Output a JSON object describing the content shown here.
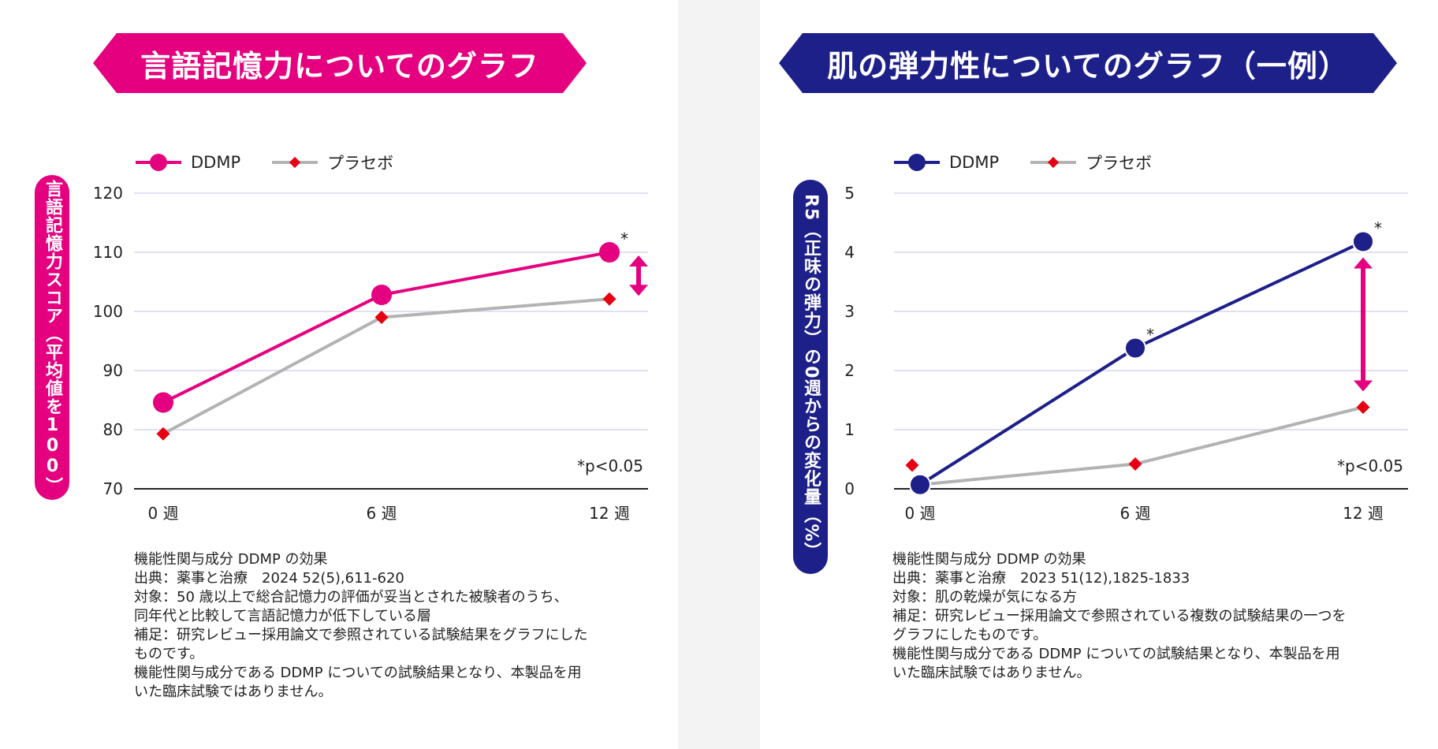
{
  "colors": {
    "magenta": "#e4007f",
    "navy": "#1d2088",
    "gray": "#b3b3b3",
    "red": "#e60012"
  },
  "chart_data": [
    {
      "type": "line",
      "title": "言語記憶力についてのグラフ",
      "ylabel": "言語記憶力スコア（平均値を100）",
      "xlabel": "",
      "categories": [
        "0 週",
        "6 週",
        "12 週"
      ],
      "x": [
        0,
        6,
        12
      ],
      "ylim": [
        70,
        120
      ],
      "yticks": [
        70,
        80,
        90,
        100,
        110,
        120
      ],
      "grid": true,
      "legend": "top-left",
      "series": [
        {
          "name": "DDMP",
          "values": [
            84.6,
            102.8,
            110.0
          ],
          "significance": [
            "",
            "",
            "*"
          ]
        },
        {
          "name": "プラセボ",
          "values": [
            79.3,
            99.0,
            102.1
          ]
        }
      ],
      "annotation": "*p<0.05",
      "notes": [
        "機能性関与成分 DDMP の効果",
        "出典：薬事と治療　2024 52(5),611-620",
        "対象：50 歳以上で総合記憶力の評価が妥当とされた被験者のうち、",
        "同年代と比較して言語記憶力が低下している層",
        "補足：研究レビュー採用論文で参照されている試験結果をグラフにした",
        "ものです。",
        "機能性関与成分である DDMP についての試験結果となり、本製品を用",
        "いた臨床試験ではありません。"
      ]
    },
    {
      "type": "line",
      "title": "肌の弾力性についてのグラフ（一例）",
      "ylabel": "R5（正味の弾力）の0週からの変化量（%）",
      "xlabel": "",
      "categories": [
        "0 週",
        "6 週",
        "12 週"
      ],
      "x": [
        0,
        6,
        12
      ],
      "ylim": [
        0,
        5
      ],
      "yticks": [
        0,
        1,
        2,
        3,
        4,
        5
      ],
      "grid": true,
      "legend": "top-left",
      "series": [
        {
          "name": "DDMP",
          "values": [
            0.07,
            2.38,
            4.18
          ],
          "significance": [
            "",
            "*",
            "*"
          ]
        },
        {
          "name": "プラセボ",
          "values": [
            0.07,
            0.42,
            1.38
          ],
          "extra_point": {
            "x": 0,
            "y": 0.4
          }
        }
      ],
      "annotation": "*p<0.05",
      "notes": [
        "機能性関与成分 DDMP の効果",
        "出典：薬事と治療　2023 51(12),1825-1833",
        "対象：肌の乾燥が気になる方",
        "補足：研究レビュー採用論文で参照されている複数の試験結果の一つを",
        "グラフにしたものです。",
        "機能性関与成分である DDMP についての試験結果となり、本製品を用",
        "いた臨床試験ではありません。"
      ]
    }
  ]
}
